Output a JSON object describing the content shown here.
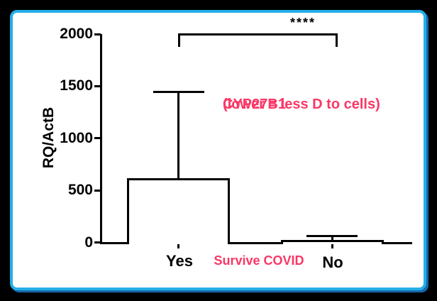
{
  "frame": {
    "background": "#000000",
    "card_background": "#ffffff",
    "border_color": "#25AEE8",
    "shadow_color": "#1467A8"
  },
  "chart_data": {
    "type": "bar",
    "ylabel": "RQ/ActB",
    "xlabel": "Survive COVID",
    "categories": [
      "Yes",
      "No"
    ],
    "values": [
      620,
      25
    ],
    "error_high": [
      1450,
      65
    ],
    "ylim": [
      0,
      2000
    ],
    "yticks": [
      0,
      500,
      1000,
      1500,
      2000
    ],
    "grid": "off",
    "bar_fill": "#ffffff",
    "bar_stroke": "#000000",
    "significance": {
      "label": "****",
      "from": "Yes",
      "to": "No"
    },
    "annotation": {
      "line1": "CYP27B1",
      "line2": "(lower = less D to cells)"
    },
    "accent_color": "#FA3766",
    "axis_color": "#000000"
  }
}
